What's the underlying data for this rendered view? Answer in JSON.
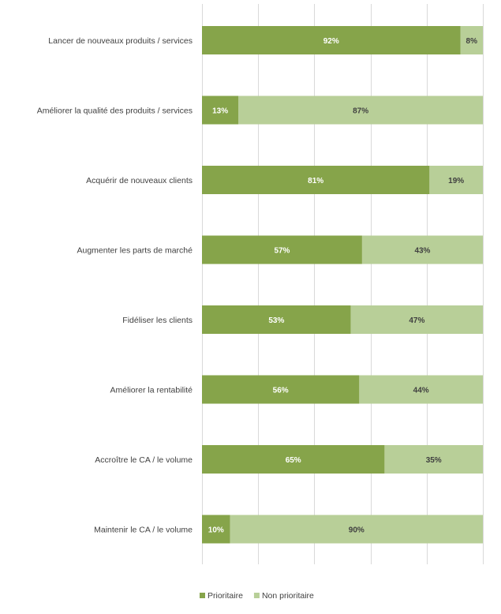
{
  "chart_data": {
    "type": "bar",
    "orientation": "horizontal",
    "stacked": true,
    "percent_stacked": true,
    "categories": [
      "Lancer de nouveaux produits / services",
      "Améliorer la qualité des produits / services",
      "Acquérir de nouveaux clients",
      "Augmenter les parts de marché",
      "Fidéliser les clients",
      "Améliorer la rentabilité",
      "Accroître le CA / le volume",
      "Maintenir le CA / le volume"
    ],
    "series": [
      {
        "name": "Prioritaire",
        "color": "#86a44a",
        "label_color": "#ffffff",
        "values": [
          92,
          13,
          81,
          57,
          53,
          56,
          65,
          10
        ],
        "labels": [
          "92%",
          "13%",
          "81%",
          "57%",
          "53%",
          "56%",
          "65%",
          "10%"
        ]
      },
      {
        "name": "Non prioritaire",
        "color": "#b8cf98",
        "label_color": "#404040",
        "values": [
          8,
          87,
          19,
          43,
          47,
          44,
          35,
          90
        ],
        "labels": [
          "8%",
          "87%",
          "19%",
          "43%",
          "47%",
          "44%",
          "35%",
          "90%"
        ]
      }
    ],
    "xlim": [
      0,
      100
    ],
    "gridlines": true,
    "legend_position": "bottom",
    "title": "",
    "xlabel": "",
    "ylabel": ""
  }
}
